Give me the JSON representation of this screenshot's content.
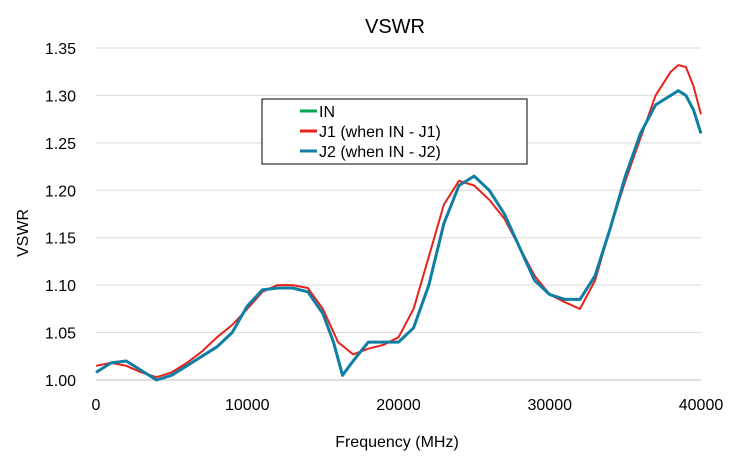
{
  "chart_data": {
    "type": "line",
    "title": "VSWR",
    "xlabel": "Frequency (MHz)",
    "ylabel": "VSWR",
    "xlim": [
      0,
      40000
    ],
    "ylim": [
      1.0,
      1.35
    ],
    "x_ticks": [
      "0",
      "10000",
      "20000",
      "30000",
      "40000"
    ],
    "y_ticks": [
      "1.00",
      "1.05",
      "1.10",
      "1.15",
      "1.20",
      "1.25",
      "1.30",
      "1.35"
    ],
    "grid": "horizontal",
    "legend_position": "upper-middle",
    "series": [
      {
        "name": "IN",
        "color": "#00a651",
        "x": [],
        "y": []
      },
      {
        "name": "J1 (when IN - J1)",
        "color": "#e8231b",
        "x": [
          0,
          1000,
          2000,
          3000,
          4000,
          5000,
          6000,
          7000,
          8000,
          9000,
          10000,
          11000,
          12000,
          13000,
          14000,
          15000,
          16000,
          17000,
          18000,
          19000,
          20000,
          21000,
          22000,
          23000,
          24000,
          25000,
          26000,
          27000,
          28000,
          29000,
          30000,
          31000,
          32000,
          33000,
          34000,
          35000,
          36000,
          37000,
          38000,
          38500,
          39000,
          39500,
          40000
        ],
        "y": [
          1.015,
          1.018,
          1.015,
          1.008,
          1.003,
          1.008,
          1.018,
          1.03,
          1.045,
          1.058,
          1.075,
          1.093,
          1.1,
          1.1,
          1.097,
          1.075,
          1.04,
          1.027,
          1.033,
          1.037,
          1.045,
          1.075,
          1.13,
          1.185,
          1.21,
          1.205,
          1.19,
          1.17,
          1.14,
          1.11,
          1.09,
          1.082,
          1.075,
          1.105,
          1.16,
          1.21,
          1.255,
          1.3,
          1.325,
          1.332,
          1.33,
          1.31,
          1.28
        ]
      },
      {
        "name": "J2 (when IN - J2)",
        "color": "#0e7ea4",
        "x": [
          0,
          1000,
          2000,
          3000,
          4000,
          5000,
          6000,
          7000,
          8000,
          9000,
          10000,
          11000,
          12000,
          13000,
          14000,
          15000,
          15700,
          16300,
          17000,
          18000,
          19000,
          20000,
          21000,
          22000,
          23000,
          24000,
          25000,
          26000,
          27000,
          28000,
          29000,
          30000,
          31000,
          32000,
          33000,
          34000,
          35000,
          36000,
          37000,
          38000,
          38500,
          39000,
          39500,
          40000
        ],
        "y": [
          1.008,
          1.018,
          1.02,
          1.01,
          1.0,
          1.005,
          1.015,
          1.025,
          1.035,
          1.05,
          1.078,
          1.095,
          1.097,
          1.097,
          1.093,
          1.07,
          1.04,
          1.005,
          1.02,
          1.04,
          1.04,
          1.04,
          1.055,
          1.1,
          1.165,
          1.205,
          1.215,
          1.2,
          1.175,
          1.14,
          1.105,
          1.09,
          1.085,
          1.085,
          1.11,
          1.16,
          1.215,
          1.26,
          1.29,
          1.3,
          1.305,
          1.3,
          1.285,
          1.26
        ]
      }
    ]
  }
}
